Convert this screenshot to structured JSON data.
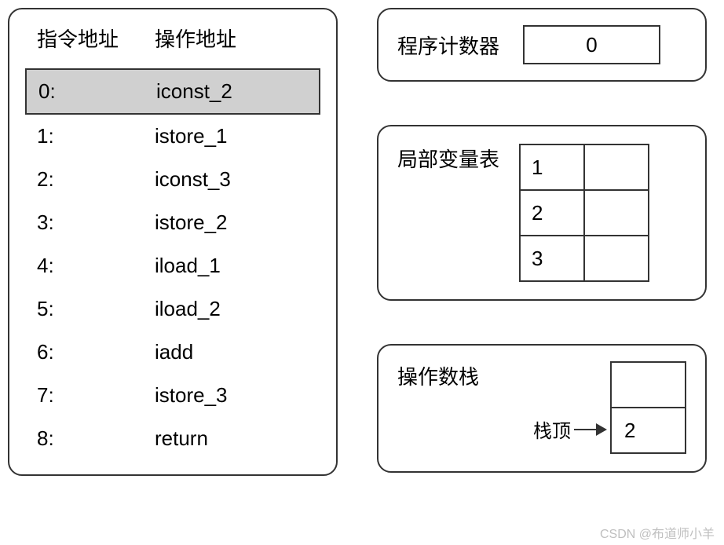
{
  "left": {
    "header_addr": "指令地址",
    "header_op": "操作地址",
    "instructions": [
      {
        "addr": "0:",
        "op": "iconst_2",
        "highlighted": true
      },
      {
        "addr": "1:",
        "op": "istore_1",
        "highlighted": false
      },
      {
        "addr": "2:",
        "op": "iconst_3",
        "highlighted": false
      },
      {
        "addr": "3:",
        "op": "istore_2",
        "highlighted": false
      },
      {
        "addr": "4:",
        "op": "iload_1",
        "highlighted": false
      },
      {
        "addr": "5:",
        "op": "iload_2",
        "highlighted": false
      },
      {
        "addr": "6:",
        "op": "iadd",
        "highlighted": false
      },
      {
        "addr": "7:",
        "op": "istore_3",
        "highlighted": false
      },
      {
        "addr": "8:",
        "op": "return",
        "highlighted": false
      }
    ]
  },
  "pc": {
    "label": "程序计数器",
    "value": "0"
  },
  "lvt": {
    "label": "局部变量表",
    "rows": [
      {
        "index": "1",
        "value": ""
      },
      {
        "index": "2",
        "value": ""
      },
      {
        "index": "3",
        "value": ""
      }
    ]
  },
  "stack": {
    "label": "操作数栈",
    "top_label": "栈顶",
    "cells": [
      {
        "value": ""
      },
      {
        "value": "2"
      }
    ]
  },
  "watermark": "CSDN @布道师小羊",
  "colors": {
    "border": "#333333",
    "highlight_bg": "#d0d0d0",
    "background": "#ffffff",
    "watermark": "#bfbfbf"
  },
  "fonts": {
    "main_size": 26,
    "watermark_size": 16
  }
}
